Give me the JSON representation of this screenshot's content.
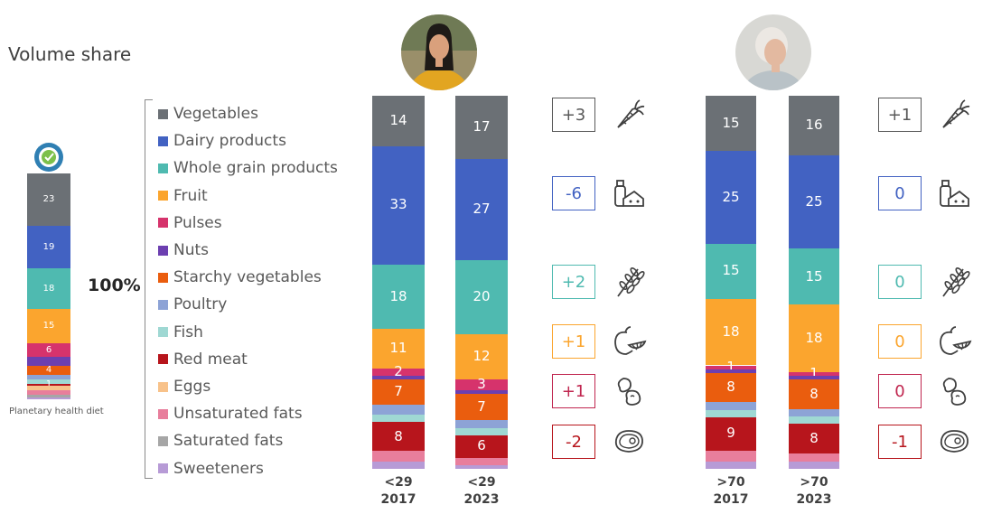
{
  "title": "Volume share",
  "total_label": "100%",
  "phd_label": "Planetary health diet",
  "legend": [
    {
      "label": "Vegetables",
      "color": "#6b7075"
    },
    {
      "label": "Dairy products",
      "color": "#4262c2"
    },
    {
      "label": "Whole grain products",
      "color": "#4fbab0"
    },
    {
      "label": "Fruit",
      "color": "#fba52e"
    },
    {
      "label": "Pulses",
      "color": "#d6336c"
    },
    {
      "label": "Nuts",
      "color": "#6c3fb0"
    },
    {
      "label": "Starchy vegetables",
      "color": "#ea5d0e"
    },
    {
      "label": "Poultry",
      "color": "#8da3d6"
    },
    {
      "label": "Fish",
      "color": "#9fd8d3"
    },
    {
      "label": "Red meat",
      "color": "#b7151c"
    },
    {
      "label": "Eggs",
      "color": "#f8c28a"
    },
    {
      "label": "Unsaturated fats",
      "color": "#e87e9c"
    },
    {
      "label": "Saturated fats",
      "color": "#a6a6a6"
    },
    {
      "label": "Sweeteners",
      "color": "#b79bd6"
    }
  ],
  "chart_data": {
    "type": "bar",
    "stacked": true,
    "normalized": "100%",
    "categories": [
      "Planetary health diet",
      "<29 2017",
      "<29 2023",
      ">70 2017",
      ">70 2023"
    ],
    "category_display": [
      {
        "line1": "",
        "line2": ""
      },
      {
        "line1": "<29",
        "line2": "2017"
      },
      {
        "line1": "<29",
        "line2": "2023"
      },
      {
        "line1": ">70",
        "line2": "2017"
      },
      {
        "line1": ">70",
        "line2": "2023"
      }
    ],
    "series": [
      {
        "name": "Vegetables",
        "values": [
          23,
          14,
          17,
          15,
          16
        ]
      },
      {
        "name": "Dairy products",
        "values": [
          19,
          33,
          27,
          25,
          25
        ]
      },
      {
        "name": "Whole grain products",
        "values": [
          18,
          18,
          20,
          15,
          15
        ]
      },
      {
        "name": "Fruit",
        "values": [
          15,
          11,
          12,
          18,
          18
        ]
      },
      {
        "name": "Pulses",
        "values": [
          6,
          2,
          3,
          1,
          1
        ]
      },
      {
        "name": "Nuts",
        "values": [
          4,
          1,
          1,
          1,
          1
        ]
      },
      {
        "name": "Starchy vegetables",
        "values": [
          4,
          7,
          7,
          8,
          8
        ]
      },
      {
        "name": "Poultry",
        "values": [
          2,
          3,
          2,
          2,
          2
        ]
      },
      {
        "name": "Fish",
        "values": [
          2,
          2,
          2,
          2,
          2
        ]
      },
      {
        "name": "Red meat",
        "values": [
          1,
          8,
          6,
          9,
          8
        ]
      },
      {
        "name": "Eggs",
        "values": [
          2,
          0,
          0,
          0,
          0
        ]
      },
      {
        "name": "Unsaturated fats",
        "values": [
          2,
          3,
          2,
          3,
          2
        ]
      },
      {
        "name": "Saturated fats",
        "values": [
          1,
          0,
          0,
          0,
          0
        ]
      },
      {
        "name": "Sweeteners",
        "values": [
          1,
          2,
          1,
          2,
          2
        ]
      }
    ],
    "shown_labels": [
      [
        23,
        19,
        18,
        15,
        6,
        null,
        4,
        null,
        null,
        1,
        null,
        null,
        null,
        null
      ],
      [
        14,
        33,
        18,
        11,
        2,
        null,
        7,
        null,
        null,
        8,
        null,
        null,
        null,
        null
      ],
      [
        17,
        27,
        20,
        12,
        3,
        null,
        7,
        null,
        null,
        6,
        null,
        null,
        null,
        null
      ],
      [
        15,
        25,
        15,
        18,
        1,
        null,
        8,
        null,
        null,
        9,
        null,
        null,
        null,
        null
      ],
      [
        16,
        25,
        15,
        18,
        1,
        null,
        8,
        null,
        null,
        8,
        null,
        null,
        null,
        null
      ]
    ]
  },
  "changes": {
    "young": [
      {
        "value": "+3",
        "color": "#595959",
        "icon": "carrot-icon"
      },
      {
        "value": "-6",
        "color": "#4262c2",
        "icon": "milk-cheese-icon"
      },
      {
        "value": "+2",
        "color": "#4fbab0",
        "icon": "wheat-icon"
      },
      {
        "value": "+1",
        "color": "#fba52e",
        "icon": "fruit-icon"
      },
      {
        "value": "+1",
        "color": "#c0264f",
        "icon": "beans-icon"
      },
      {
        "value": "-2",
        "color": "#b7151c",
        "icon": "steak-icon"
      }
    ],
    "old": [
      {
        "value": "+1",
        "color": "#595959",
        "icon": "carrot-icon"
      },
      {
        "value": "0",
        "color": "#4262c2",
        "icon": "milk-cheese-icon"
      },
      {
        "value": "0",
        "color": "#4fbab0",
        "icon": "wheat-icon"
      },
      {
        "value": "0",
        "color": "#fba52e",
        "icon": "fruit-icon"
      },
      {
        "value": "0",
        "color": "#c0264f",
        "icon": "beans-icon"
      },
      {
        "value": "-1",
        "color": "#b7151c",
        "icon": "steak-icon"
      }
    ]
  }
}
